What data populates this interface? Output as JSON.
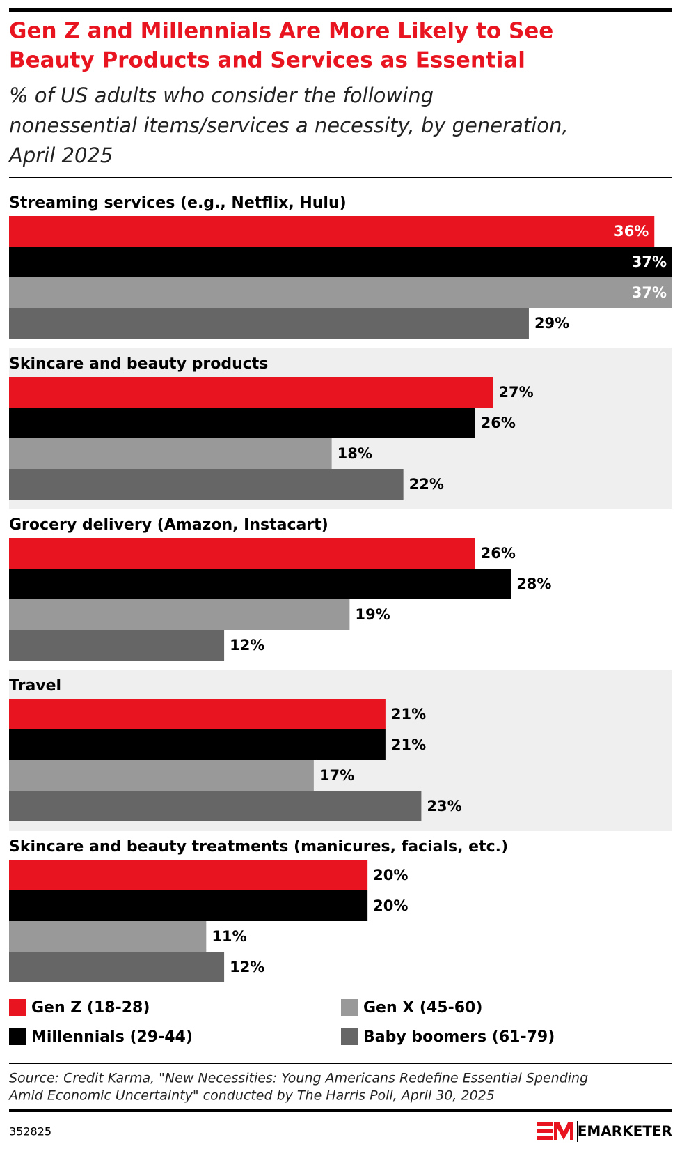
{
  "chart_data": {
    "type": "hbar",
    "title": [
      "Gen Z and Millennials Are More Likely to See",
      "Beauty Products and Services as Essential"
    ],
    "subtitle": [
      "% of US adults who consider the following",
      "nonessential items/services a necessity, by generation,",
      "April 2025"
    ],
    "categories": [
      "Streaming services (e.g., Netflix, Hulu)",
      "Skincare and beauty products",
      "Grocery delivery (Amazon, Instacart)",
      "Travel",
      "Skincare and beauty treatments (manicures, facials, etc.)"
    ],
    "series": [
      {
        "name": "Gen Z (18-28)",
        "color": "#e8141f",
        "values": [
          36,
          27,
          26,
          21,
          20
        ],
        "value_labels": [
          "36%",
          "27%",
          "26%",
          "21%",
          "20%"
        ]
      },
      {
        "name": "Millennials (29-44)",
        "color": "#000000",
        "values": [
          37,
          26,
          28,
          21,
          20
        ],
        "value_labels": [
          "37%",
          "26%",
          "28%",
          "21%",
          "20%"
        ]
      },
      {
        "name": "Gen X (45-60)",
        "color": "#999999",
        "values": [
          37,
          18,
          19,
          17,
          11
        ],
        "value_labels": [
          "37%",
          "18%",
          "19%",
          "17%",
          "11%"
        ]
      },
      {
        "name": "Baby boomers (61-79)",
        "color": "#666666",
        "values": [
          29,
          22,
          12,
          23,
          12
        ],
        "value_labels": [
          "29%",
          "22%",
          "12%",
          "23%",
          "12%"
        ]
      }
    ],
    "source": [
      "Source: Credit Karma, \"New Necessities: Young Americans Redefine Essential Spending",
      "Amid Economic Uncertainty\" conducted by The Harris Poll, April 30, 2025"
    ],
    "chart_id": "352825",
    "brand": "EMARKETER"
  }
}
